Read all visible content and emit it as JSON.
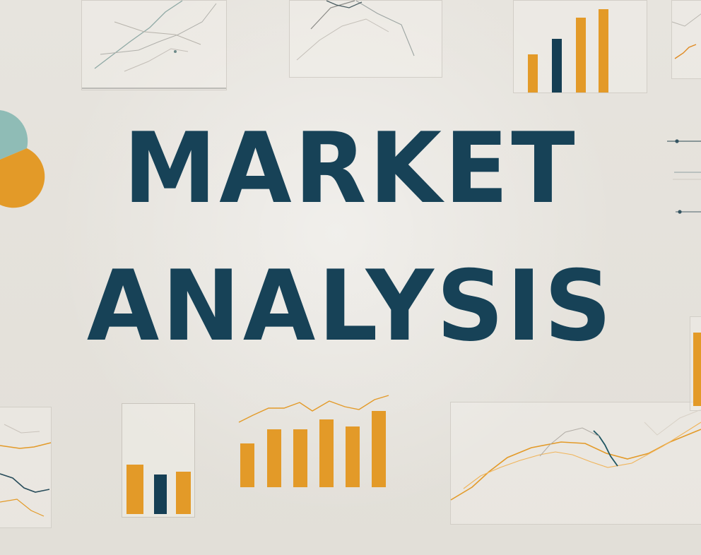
{
  "title": {
    "line1": "MARKET",
    "line2": "ANALYSIS"
  },
  "colors": {
    "navy": "#174257",
    "orange": "#e39a28",
    "teal": "#8fbcb6",
    "paper": "#e5e2dc",
    "line": "#c9c5bd"
  },
  "decorations": {
    "top_bar_values": [
      1,
      1.45,
      2.05,
      2.25
    ],
    "bottom_center_bar_values": [
      0.52,
      0.68,
      0.68,
      0.82,
      0.72,
      0.92
    ],
    "bottom_left_bar_values": [
      0.92,
      0.82,
      0.85
    ],
    "right_bar_value": 0.78,
    "pie_slices": [
      0.56,
      0.44
    ]
  }
}
